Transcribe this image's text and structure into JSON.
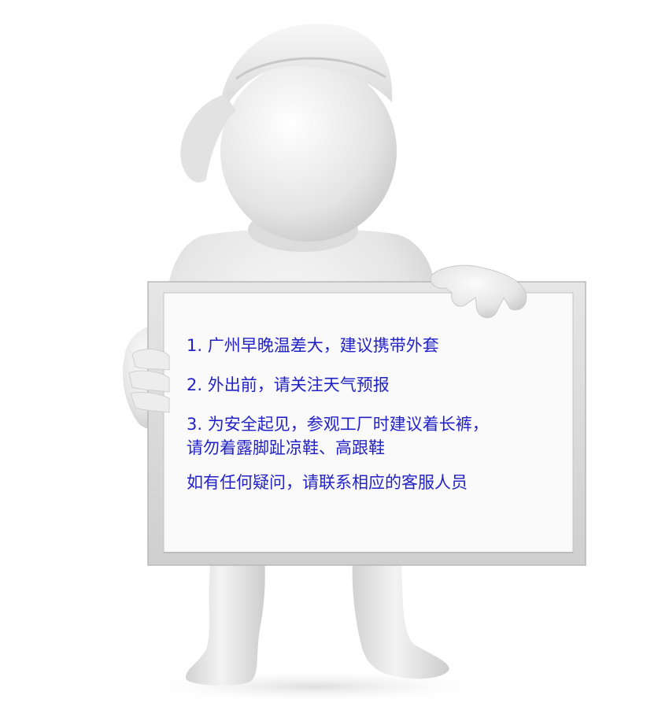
{
  "board": {
    "notes": [
      "1. 广州早晚温差大，建议携带外套",
      "2. 外出前，请关注天气预报",
      "3. 为安全起见，参观工厂时建议着长裤，",
      "请勿着露脚趾凉鞋、高跟鞋",
      "如有任何疑问，请联系相应的客服人员"
    ]
  },
  "colors": {
    "text": "#2222c8",
    "figure": "#e9e9e9",
    "board_frame": "#dcdcdc",
    "board_surface": "#fafafa"
  },
  "image_subject": "3d-white-figure-holding-sign"
}
